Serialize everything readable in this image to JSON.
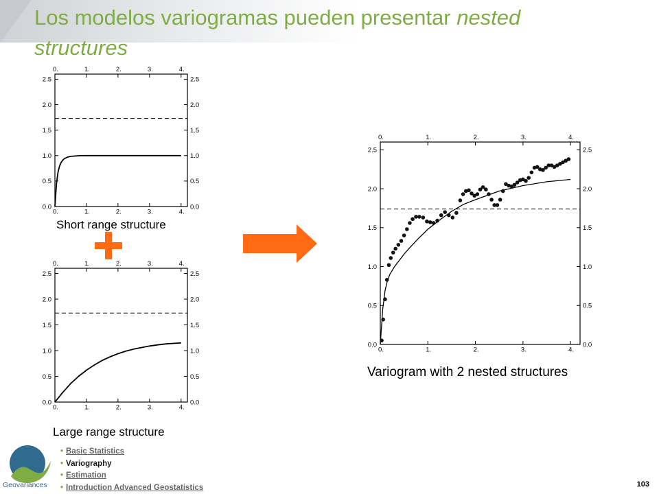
{
  "slide": {
    "title_main": "Los modelos variogramas pueden presentar",
    "title_emph": "nested structures",
    "page_number": "103"
  },
  "navigation": {
    "items": [
      {
        "label": "Basic Statistics",
        "active": false
      },
      {
        "label": "Variography",
        "active": true
      },
      {
        "label": "Estimation",
        "active": false
      },
      {
        "label": "Introduction Advanced Geostatistics",
        "active": false
      }
    ]
  },
  "logo": {
    "text": "Geovariances"
  },
  "icons": {
    "plus": "plus-icon",
    "arrow": "right-arrow-icon"
  },
  "colors": {
    "title": "#7fac45",
    "accent": "#ff6a13",
    "logo_blue": "#2f6a8f",
    "logo_green": "#7fac45"
  },
  "chart_data": [
    {
      "type": "line",
      "title": "Short range structure",
      "xlim": [
        0,
        4.2
      ],
      "ylim": [
        0,
        2.6
      ],
      "xticks": [
        "0.",
        "1.",
        "2.",
        "3.",
        "4."
      ],
      "yticks": [
        "0.0",
        "0.5",
        "1.0",
        "1.5",
        "2.0",
        "2.5"
      ],
      "reference_line": 1.73,
      "series": [
        {
          "x": [
            0.0,
            0.05,
            0.1,
            0.15,
            0.2,
            0.25,
            0.3,
            0.4,
            0.5,
            0.6,
            0.8,
            1.0,
            1.5,
            2.0,
            3.0,
            4.0
          ],
          "y": [
            0.0,
            0.45,
            0.68,
            0.8,
            0.87,
            0.91,
            0.94,
            0.97,
            0.985,
            0.99,
            0.998,
            1.0,
            1.0,
            1.0,
            1.0,
            1.0
          ]
        }
      ]
    },
    {
      "type": "line",
      "title": "Large range structure",
      "xlim": [
        0,
        4.2
      ],
      "ylim": [
        0,
        2.6
      ],
      "xticks": [
        "0.",
        "1.",
        "2.",
        "3.",
        "4."
      ],
      "yticks": [
        "0.0",
        "0.5",
        "1.0",
        "1.5",
        "2.0",
        "2.5"
      ],
      "reference_line": 1.73,
      "series": [
        {
          "x": [
            0.0,
            0.25,
            0.5,
            0.75,
            1.0,
            1.25,
            1.5,
            1.75,
            2.0,
            2.25,
            2.5,
            2.75,
            3.0,
            3.25,
            3.5,
            3.75,
            4.0
          ],
          "y": [
            0.0,
            0.19,
            0.36,
            0.5,
            0.62,
            0.72,
            0.81,
            0.88,
            0.94,
            0.99,
            1.03,
            1.06,
            1.09,
            1.11,
            1.13,
            1.14,
            1.15
          ]
        }
      ]
    },
    {
      "type": "scatter",
      "title": "Variogram with 2 nested structures",
      "xlim": [
        0,
        4.2
      ],
      "ylim": [
        0,
        2.6
      ],
      "xticks": [
        "0.",
        "1.",
        "2.",
        "3.",
        "4."
      ],
      "yticks": [
        "0.0",
        "0.5",
        "1.0",
        "1.5",
        "2.0",
        "2.5"
      ],
      "reference_line": 1.74,
      "model": {
        "x": [
          0.0,
          0.05,
          0.1,
          0.15,
          0.2,
          0.3,
          0.4,
          0.5,
          0.6,
          0.8,
          1.0,
          1.25,
          1.5,
          1.75,
          2.0,
          2.5,
          3.0,
          3.5,
          4.0
        ],
        "y": [
          0.0,
          0.45,
          0.69,
          0.82,
          0.9,
          1.0,
          1.08,
          1.16,
          1.23,
          1.36,
          1.48,
          1.6,
          1.71,
          1.8,
          1.86,
          1.97,
          2.04,
          2.09,
          2.12
        ]
      },
      "points": {
        "x": [
          0.03,
          0.06,
          0.1,
          0.14,
          0.18,
          0.22,
          0.27,
          0.32,
          0.38,
          0.44,
          0.5,
          0.56,
          0.62,
          0.68,
          0.75,
          0.82,
          0.9,
          0.98,
          1.05,
          1.12,
          1.2,
          1.28,
          1.36,
          1.44,
          1.52,
          1.6,
          1.68,
          1.74,
          1.8,
          1.86,
          1.92,
          1.98,
          2.04,
          2.1,
          2.16,
          2.22,
          2.28,
          2.34,
          2.4,
          2.46,
          2.52,
          2.58,
          2.64,
          2.7,
          2.76,
          2.82,
          2.88,
          2.94,
          3.0,
          3.06,
          3.12,
          3.18,
          3.24,
          3.3,
          3.36,
          3.42,
          3.48,
          3.54,
          3.6,
          3.66,
          3.72,
          3.78,
          3.84,
          3.9,
          3.96
        ],
        "y": [
          0.05,
          0.32,
          0.58,
          0.83,
          1.02,
          1.11,
          1.18,
          1.23,
          1.28,
          1.33,
          1.4,
          1.48,
          1.56,
          1.61,
          1.64,
          1.64,
          1.63,
          1.58,
          1.57,
          1.56,
          1.59,
          1.66,
          1.7,
          1.66,
          1.63,
          1.69,
          1.85,
          1.93,
          1.97,
          1.98,
          1.94,
          1.91,
          1.93,
          1.99,
          2.02,
          1.99,
          1.93,
          1.86,
          1.79,
          1.79,
          1.86,
          1.97,
          2.06,
          2.04,
          2.03,
          2.05,
          2.08,
          2.11,
          2.12,
          2.1,
          2.14,
          2.21,
          2.27,
          2.28,
          2.25,
          2.24,
          2.27,
          2.3,
          2.3,
          2.28,
          2.3,
          2.32,
          2.34,
          2.36,
          2.38
        ]
      }
    }
  ]
}
